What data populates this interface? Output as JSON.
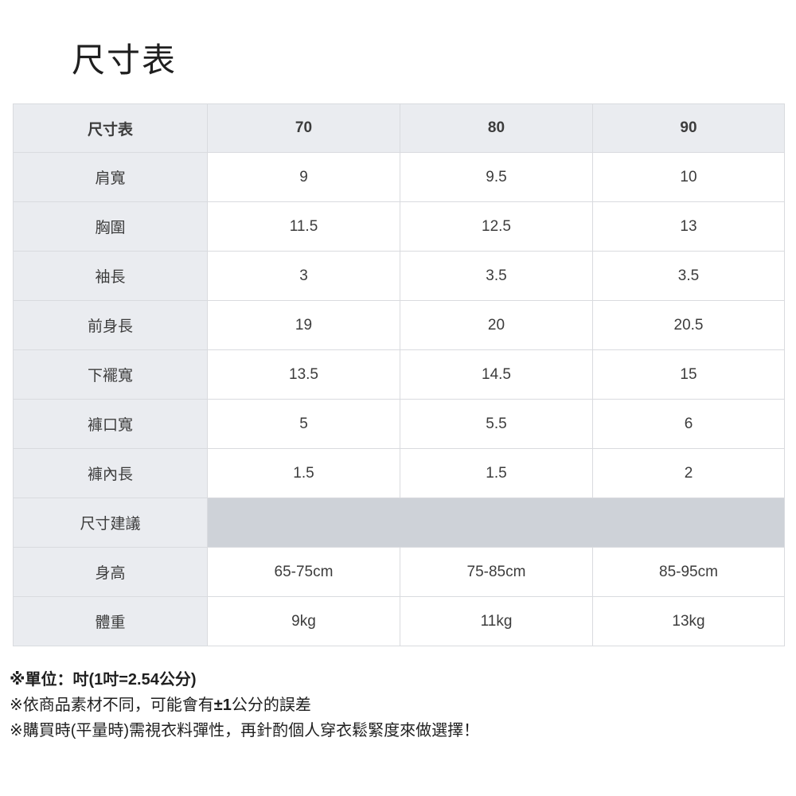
{
  "page": {
    "title": "尺寸表"
  },
  "table": {
    "header": [
      "尺寸表",
      "70",
      "80",
      "90"
    ],
    "rows": [
      {
        "label": "肩寬",
        "values": [
          "9",
          "9.5",
          "10"
        ]
      },
      {
        "label": "胸圍",
        "values": [
          "11.5",
          "12.5",
          "13"
        ]
      },
      {
        "label": "袖長",
        "values": [
          "3",
          "3.5",
          "3.5"
        ]
      },
      {
        "label": "前身長",
        "values": [
          "19",
          "20",
          "20.5"
        ]
      },
      {
        "label": "下襬寬",
        "values": [
          "13.5",
          "14.5",
          "15"
        ]
      },
      {
        "label": "褲口寬",
        "values": [
          "5",
          "5.5",
          "6"
        ]
      },
      {
        "label": "褲內長",
        "values": [
          "1.5",
          "1.5",
          "2"
        ]
      },
      {
        "label": "尺寸建議",
        "values": [
          "",
          "",
          ""
        ],
        "type": "section"
      },
      {
        "label": "身高",
        "values": [
          "65-75cm",
          "75-85cm",
          "85-95cm"
        ]
      },
      {
        "label": "體重",
        "values": [
          "9kg",
          "11kg",
          "13kg"
        ]
      }
    ]
  },
  "notes": {
    "line1": "※單位：吋(1吋=2.54公分)",
    "line2_pre": "※依商品素材不同，可能會有",
    "line2_bold": "±1",
    "line2_post": "公分的誤差",
    "line3": "※購買時(平量時)需視衣料彈性，再針酌個人穿衣鬆緊度來做選擇！"
  },
  "colors": {
    "header_bg": "#eaecf0",
    "label_bg": "#eaecf0",
    "section_band_bg": "#ced2d8",
    "border": "#d9dbdf",
    "text": "#3c3c3c",
    "title": "#1f1f1f"
  }
}
